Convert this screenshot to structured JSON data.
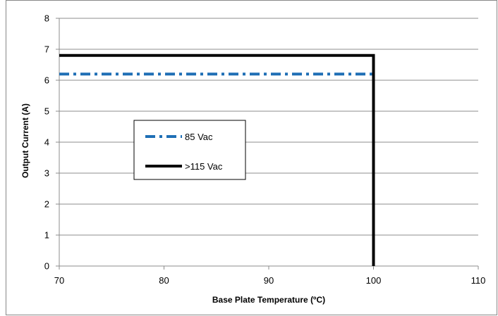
{
  "chart_data": {
    "type": "line",
    "title": "",
    "xlabel": "Base Plate Temperature (ºC)",
    "ylabel": "Output Current (A)",
    "xlim": [
      70,
      110
    ],
    "ylim": [
      0,
      8
    ],
    "x_ticks": [
      70,
      80,
      90,
      100,
      110
    ],
    "y_ticks": [
      0,
      1,
      2,
      3,
      4,
      5,
      6,
      7,
      8
    ],
    "grid": "horizontal",
    "legend_position": "inside-left",
    "series": [
      {
        "name": "85 Vac",
        "color": "#1f6fb5",
        "style": "dash-dot",
        "x": [
          70,
          100
        ],
        "y": [
          6.2,
          6.2
        ]
      },
      {
        "name": ">115 Vac",
        "color": "#000000",
        "style": "solid",
        "x": [
          70,
          100,
          100
        ],
        "y": [
          6.8,
          6.8,
          0
        ]
      }
    ]
  }
}
